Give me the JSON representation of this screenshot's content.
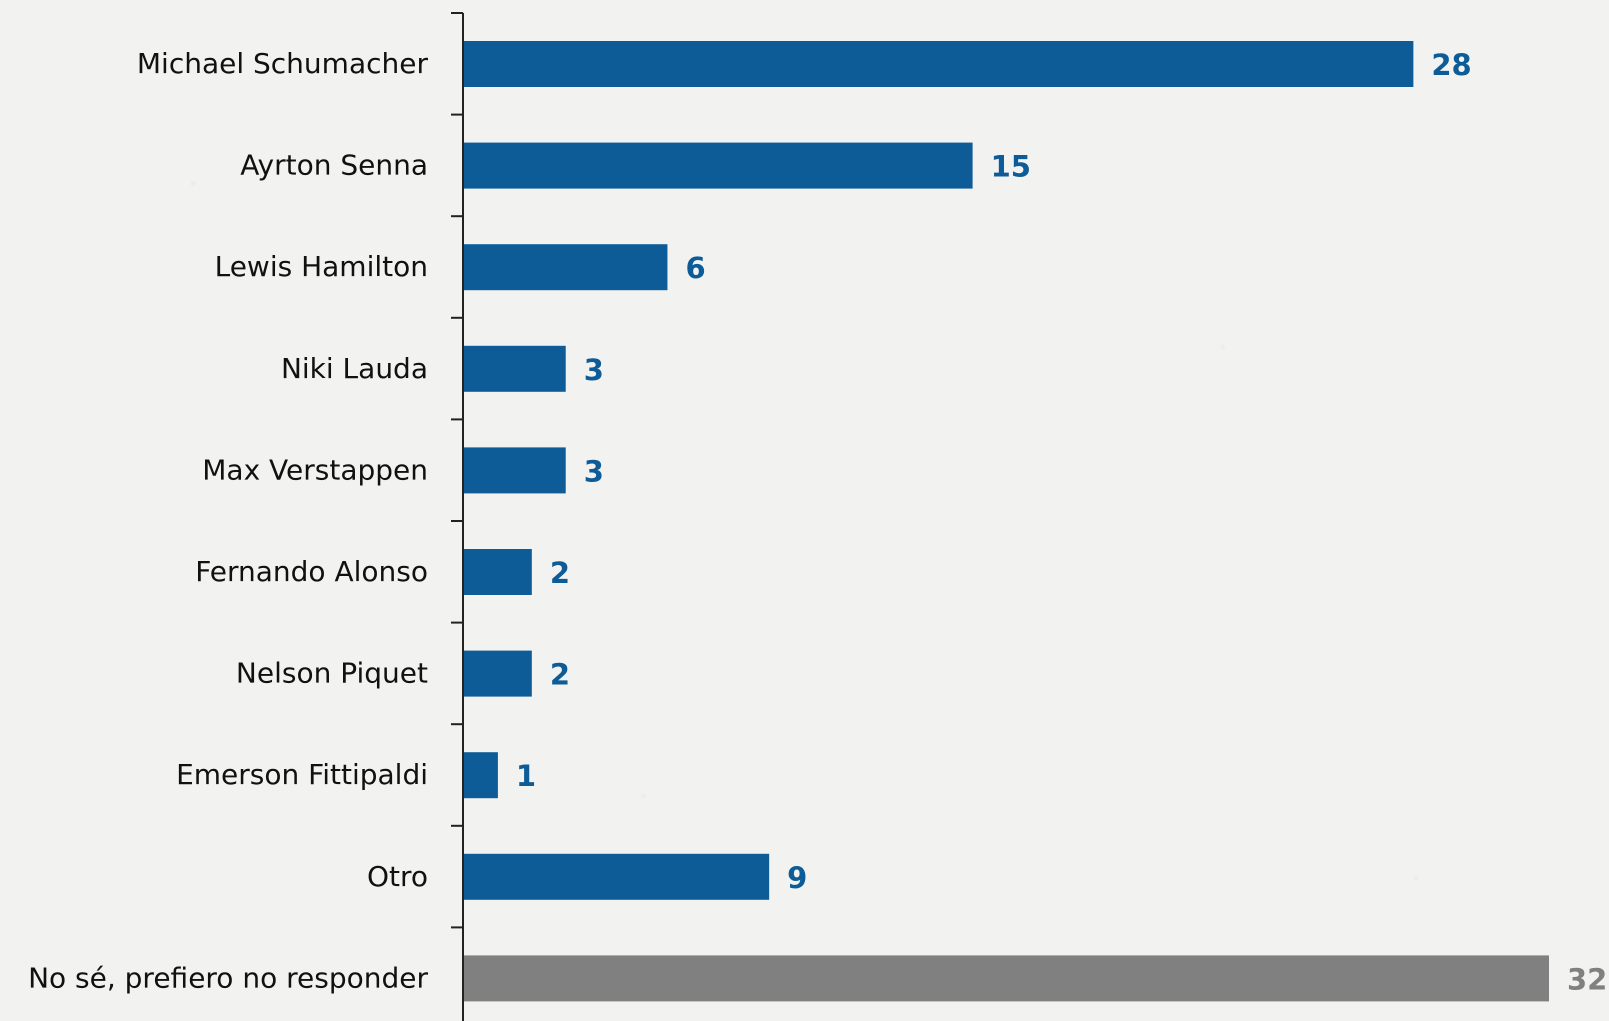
{
  "chart_data": {
    "type": "bar",
    "orientation": "horizontal",
    "categories": [
      "Michael Schumacher",
      "Ayrton Senna",
      "Lewis Hamilton",
      "Niki Lauda",
      "Max Verstappen",
      "Fernando Alonso",
      "Nelson Piquet",
      "Emerson Fittipaldi",
      "Otro",
      "No sé, prefiero no responder"
    ],
    "values": [
      28,
      15,
      6,
      3,
      3,
      2,
      2,
      1,
      9,
      32
    ],
    "data_labels": [
      "28",
      "15",
      "6",
      "3",
      "3",
      "2",
      "2",
      "1",
      "9",
      "32"
    ],
    "title": "",
    "xlabel": "",
    "ylabel": "",
    "xlim": [
      0,
      32
    ],
    "grid": false,
    "legend": "none",
    "colors": {
      "primary": "#0d5c98",
      "secondary": "#808080",
      "axis": "#222222",
      "text": "#111111"
    },
    "bar_colors": [
      "primary",
      "primary",
      "primary",
      "primary",
      "primary",
      "primary",
      "primary",
      "primary",
      "primary",
      "secondary"
    ]
  }
}
